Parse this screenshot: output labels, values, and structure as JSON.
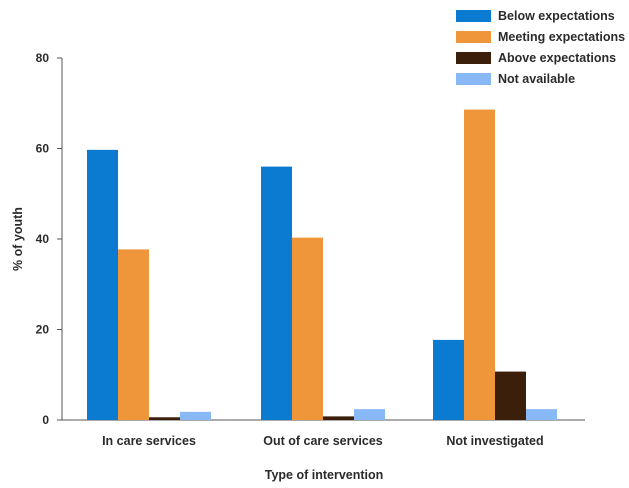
{
  "chart_data": {
    "type": "bar",
    "title": "",
    "xlabel": "Type of intervention",
    "ylabel": "% of youth",
    "ylim": [
      0,
      80
    ],
    "yticks": [
      0,
      20,
      40,
      60,
      80
    ],
    "grid": false,
    "legend_position": "top-right",
    "categories": [
      "In care services",
      "Out of care services",
      "Not investigated"
    ],
    "series": [
      {
        "name": "Below expectations",
        "color": "#0a7bd1",
        "values": [
          59.7,
          56.0,
          17.7
        ]
      },
      {
        "name": "Meeting expectations",
        "color": "#f0963a",
        "values": [
          37.7,
          40.3,
          68.6
        ]
      },
      {
        "name": "Above expectations",
        "color": "#3b1f0a",
        "values": [
          0.6,
          0.8,
          10.7
        ]
      },
      {
        "name": "Not available",
        "color": "#88b8f5",
        "values": [
          1.8,
          2.4,
          2.4
        ]
      }
    ]
  }
}
